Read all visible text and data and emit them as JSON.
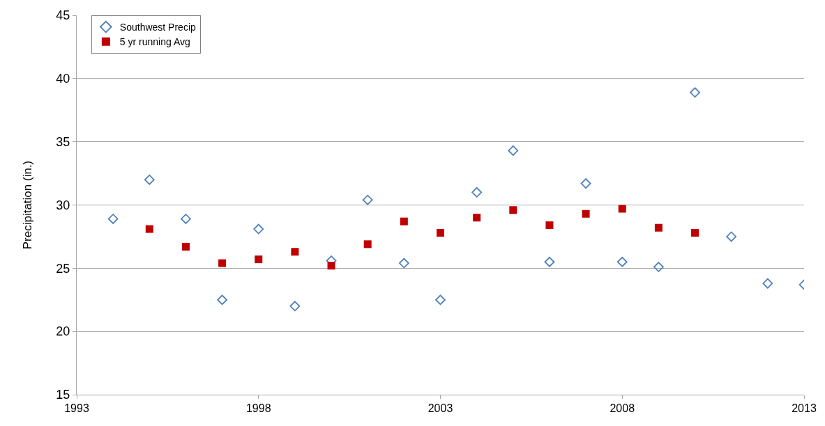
{
  "chart_data": {
    "type": "scatter",
    "ylabel": "Precipitation (in.)",
    "xlim": [
      1993,
      2013
    ],
    "xticks": [
      1993,
      1998,
      2003,
      2008,
      2013
    ],
    "ylim": [
      15,
      45
    ],
    "yticks": [
      15,
      20,
      25,
      30,
      35,
      40,
      45
    ],
    "grid": "y",
    "legend": "top left",
    "series": [
      {
        "name": "Southwest Precip",
        "color": "#4f81bd",
        "marker": "diamond",
        "x": [
          1994,
          1995,
          1996,
          1997,
          1998,
          1999,
          2000,
          2001,
          2002,
          2003,
          2004,
          2005,
          2006,
          2007,
          2008,
          2009,
          2010,
          2011,
          2012,
          2013
        ],
        "values": [
          28.9,
          32.0,
          28.9,
          22.5,
          28.1,
          22.0,
          25.6,
          30.4,
          25.4,
          22.5,
          31.0,
          34.3,
          25.5,
          31.7,
          25.5,
          25.1,
          38.9,
          27.5,
          23.8,
          23.7
        ]
      },
      {
        "name": "5 yr running Avg",
        "color": "#c00000",
        "marker": "square",
        "x": [
          1995,
          1996,
          1997,
          1998,
          1999,
          2000,
          2001,
          2002,
          2003,
          2004,
          2005,
          2006,
          2007,
          2008,
          2009,
          2010
        ],
        "values": [
          28.1,
          26.7,
          25.4,
          25.7,
          26.3,
          25.2,
          26.9,
          28.7,
          27.8,
          29.0,
          29.6,
          28.4,
          29.3,
          29.7,
          28.2,
          27.8
        ]
      }
    ]
  }
}
